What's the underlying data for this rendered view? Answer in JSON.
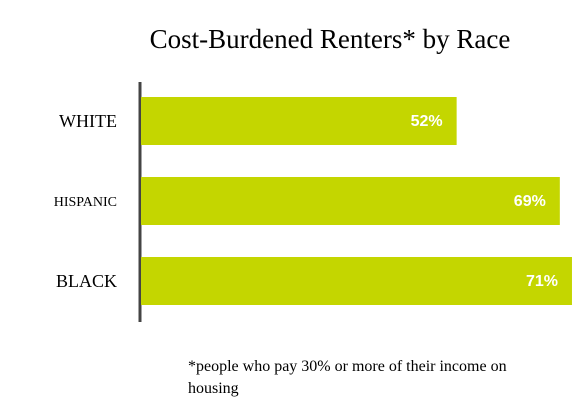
{
  "chart_data": {
    "type": "bar",
    "orientation": "horizontal",
    "title": "Cost-Burdened Renters* by Race",
    "categories": [
      "WHITE",
      "HISPANIC",
      "BLACK"
    ],
    "values": [
      52,
      69,
      71
    ],
    "value_labels": [
      "52%",
      "69%",
      "71%"
    ],
    "color": "#c4d600",
    "note": "*people who pay 30% or more of their income on housing"
  }
}
